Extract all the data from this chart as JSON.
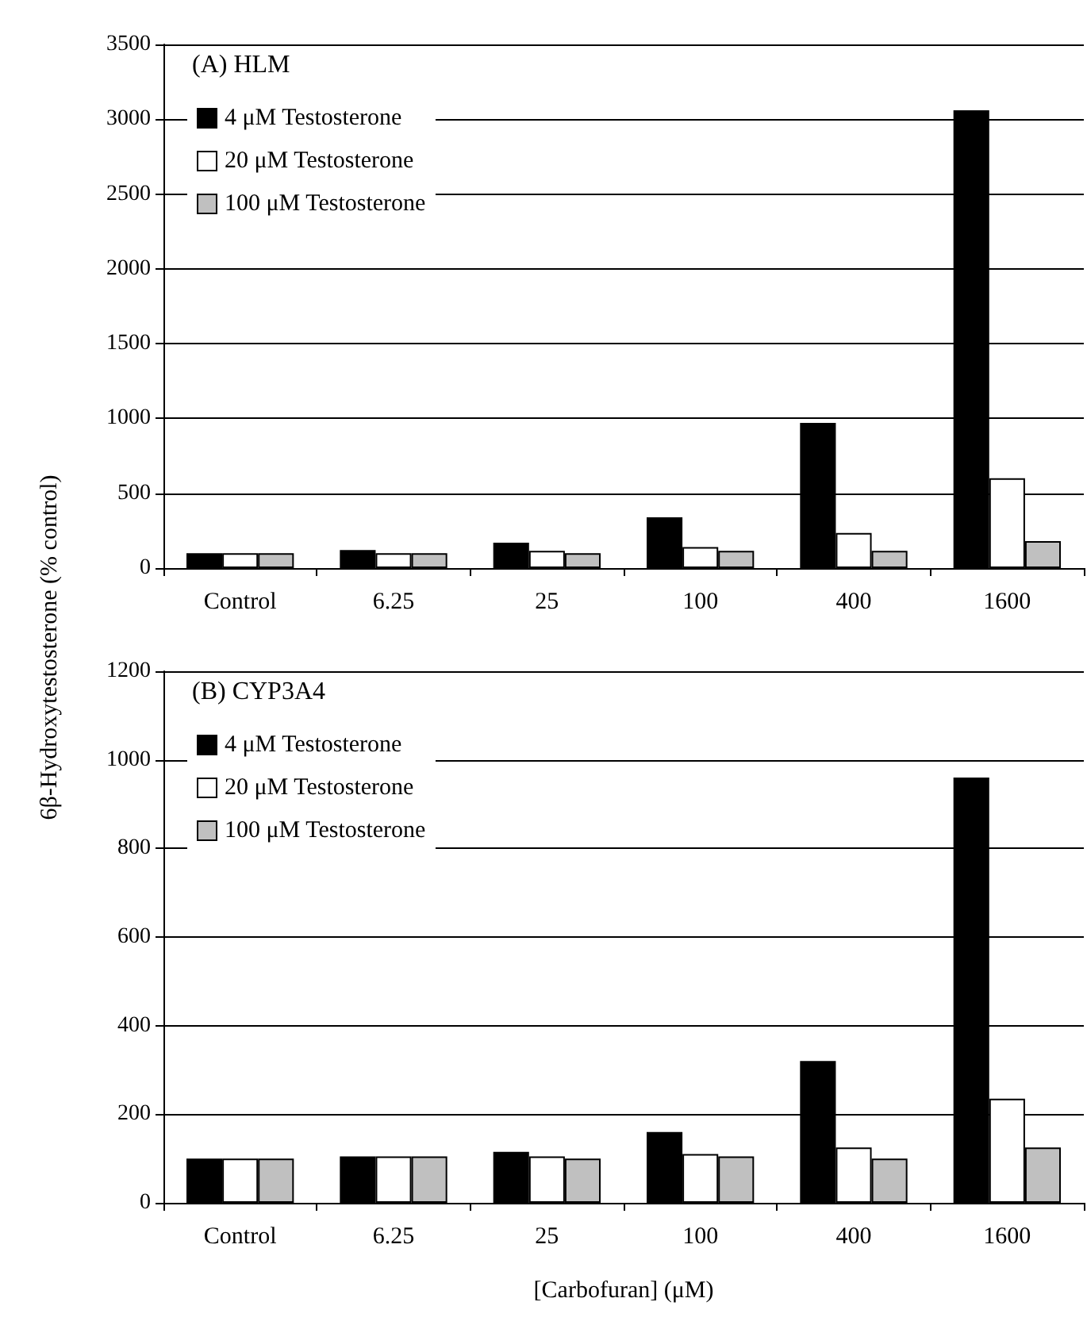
{
  "chart_data": [
    {
      "type": "bar",
      "title": "(A) HLM",
      "ylabel": "6β-Hydroxytestosterone (% control)",
      "categories": [
        "Control",
        "6.25",
        "25",
        "100",
        "400",
        "1600"
      ],
      "series": [
        {
          "name": "4 μM Testosterone",
          "color": "#000000",
          "values": [
            100,
            120,
            170,
            340,
            970,
            3060
          ]
        },
        {
          "name": "20 μM Testosterone",
          "color": "#ffffff",
          "values": [
            100,
            100,
            115,
            140,
            235,
            600
          ]
        },
        {
          "name": "100 μM Testosterone",
          "color": "#c0c0c0",
          "values": [
            100,
            100,
            100,
            115,
            115,
            180
          ]
        }
      ],
      "ylim": [
        0,
        3500
      ],
      "yticks": [
        0,
        500,
        1000,
        1500,
        2000,
        2500,
        3000,
        3500
      ],
      "grid": "y",
      "legend": "top left"
    },
    {
      "type": "bar",
      "title": "(B) CYP3A4",
      "xlabel": "[Carbofuran] (μM)",
      "categories": [
        "Control",
        "6.25",
        "25",
        "100",
        "400",
        "1600"
      ],
      "series": [
        {
          "name": "4 μM Testosterone",
          "color": "#000000",
          "values": [
            100,
            105,
            115,
            160,
            320,
            960
          ]
        },
        {
          "name": "20 μM Testosterone",
          "color": "#ffffff",
          "values": [
            100,
            105,
            105,
            110,
            125,
            235
          ]
        },
        {
          "name": "100 μM Testosterone",
          "color": "#c0c0c0",
          "values": [
            100,
            105,
            100,
            105,
            100,
            125
          ]
        }
      ],
      "ylim": [
        0,
        1200
      ],
      "yticks": [
        0,
        200,
        400,
        600,
        800,
        1000,
        1200
      ],
      "grid": "y",
      "legend": "top left"
    }
  ]
}
